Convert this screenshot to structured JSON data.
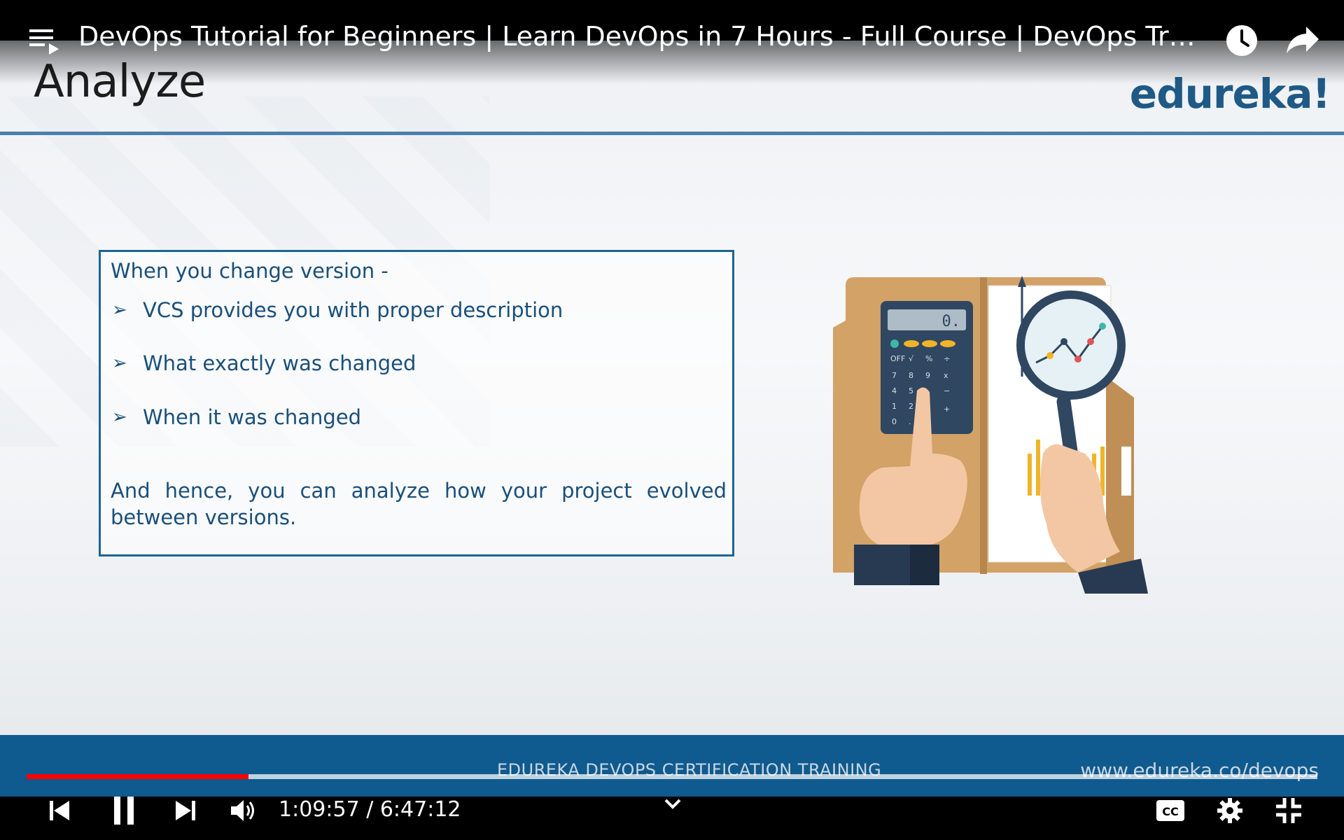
{
  "video": {
    "title": "DevOps Tutorial for Beginners | Learn DevOps in 7 Hours - Full Course | DevOps Training | Edureka",
    "current_time": "1:09:57",
    "duration": "6:47:12",
    "time_separator": " / ",
    "progress_percent": 17.2,
    "buffered_percent": 100
  },
  "slide": {
    "title": "Analyze",
    "brand": "edureka!",
    "intro": "When you change version -",
    "bullets": [
      "VCS provides you with proper description",
      "What exactly was changed",
      "When it was changed"
    ],
    "conclusion": "And hence, you can analyze how your project evolved between versions.",
    "footer_left": "EDUREKA DEVOPS CERTIFICATION TRAINING",
    "footer_right": "www.edureka.co/devops"
  },
  "icons": {
    "playlist": "playlist-icon",
    "watch_later": "clock-icon",
    "share": "share-icon",
    "previous": "skip-previous-icon",
    "pause": "pause-icon",
    "next": "skip-next-icon",
    "volume": "volume-icon",
    "expand": "chevron-down-icon",
    "captions": "captions-icon",
    "settings": "gear-icon",
    "exit_fullscreen": "exit-fullscreen-icon"
  },
  "colors": {
    "progress": "#ff0000",
    "brand_blue": "#1f5a86",
    "footer_band": "#0f5a8e"
  }
}
